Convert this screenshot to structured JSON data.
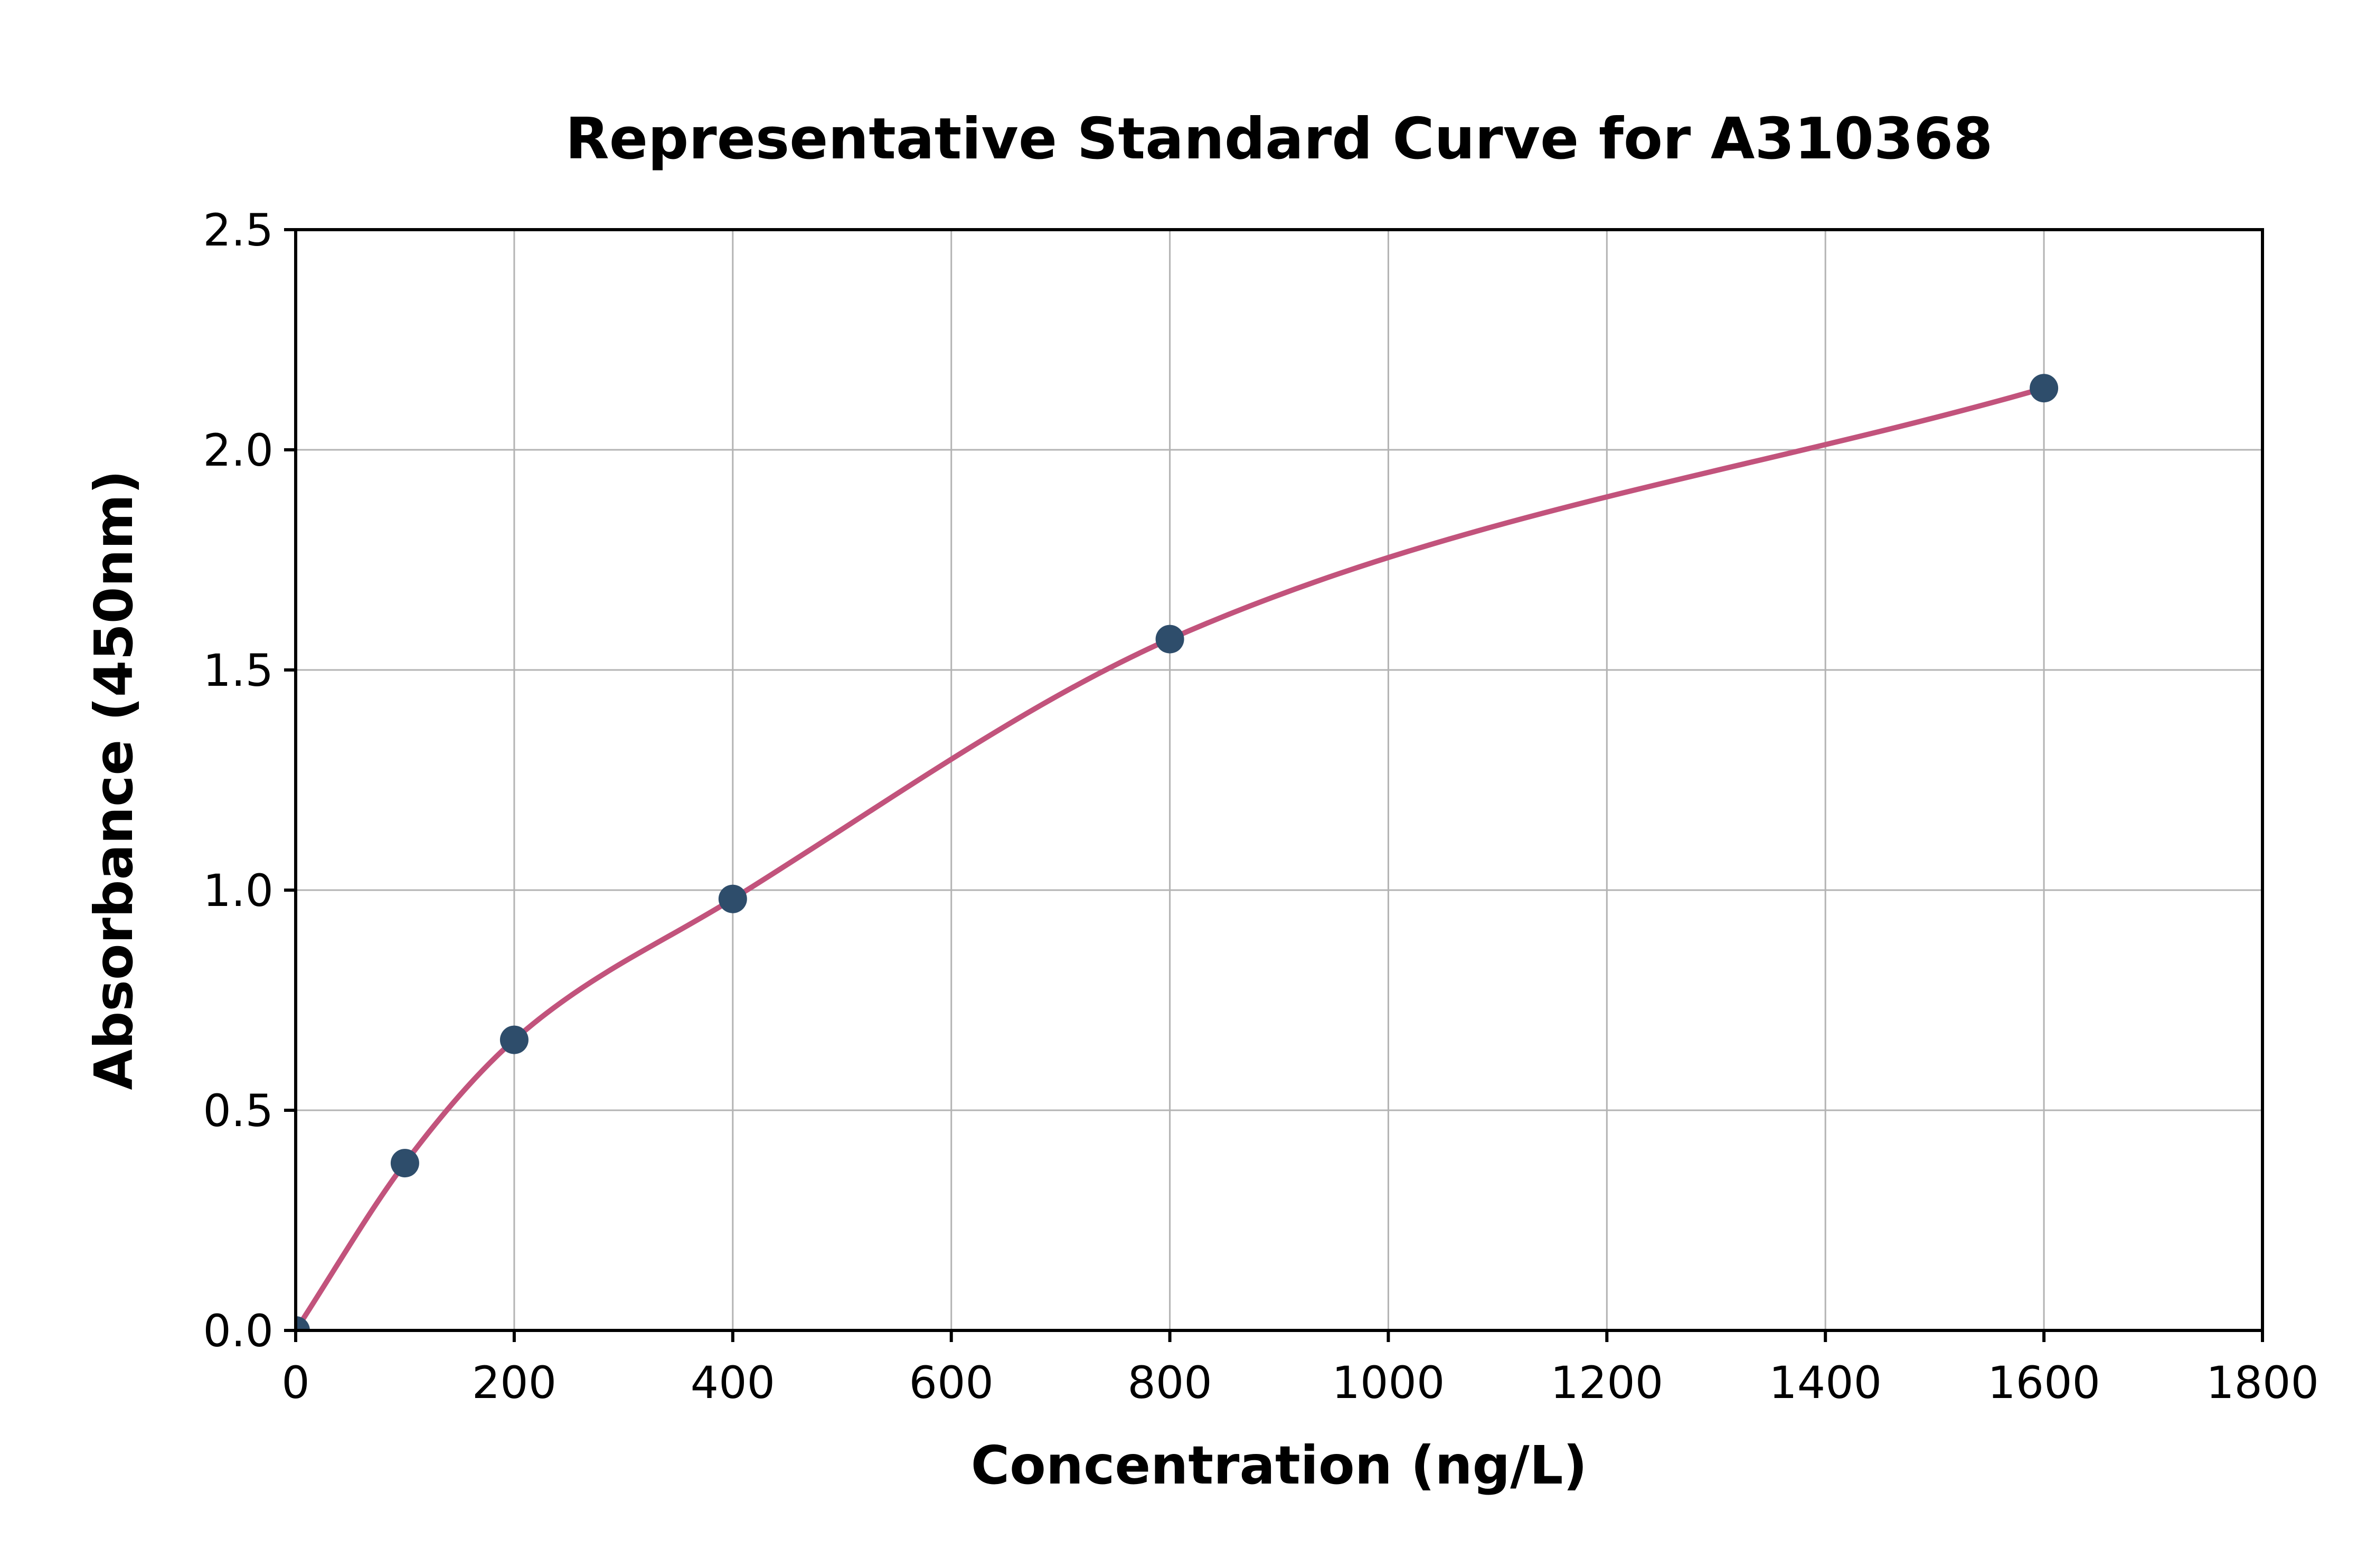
{
  "page": {
    "background": "#ffffff"
  },
  "chart_data": {
    "type": "scatter",
    "title": "Representative Standard Curve for A310368",
    "xlabel": "Concentration (ng/L)",
    "ylabel": "Absorbance (450nm)",
    "x": [
      0,
      100,
      200,
      400,
      800,
      1600
    ],
    "y": [
      0.0,
      0.38,
      0.66,
      0.98,
      1.57,
      2.14
    ],
    "xlim": [
      0,
      1800
    ],
    "ylim": [
      0.0,
      2.5
    ],
    "x_ticks": [
      0,
      200,
      400,
      600,
      800,
      1000,
      1200,
      1400,
      1600,
      1800
    ],
    "x_tick_labels": [
      "0",
      "200",
      "400",
      "600",
      "800",
      "1000",
      "1200",
      "1400",
      "1600",
      "1800"
    ],
    "y_ticks": [
      0.0,
      0.5,
      1.0,
      1.5,
      2.0,
      2.5
    ],
    "y_tick_labels": [
      "0.0",
      "0.5",
      "1.0",
      "1.5",
      "2.0",
      "2.5"
    ],
    "grid": true,
    "legend": null,
    "curve_style": "smooth monotone curve through data points",
    "colors": {
      "curve": "#c2537c",
      "points": "#2e4d6b",
      "grid": "#b3b3b3",
      "axis": "#000000",
      "text": "#000000"
    }
  }
}
